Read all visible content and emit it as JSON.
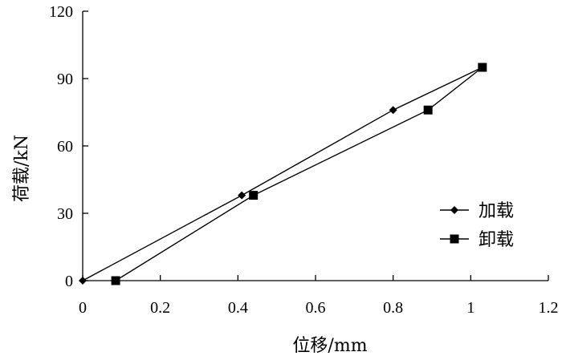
{
  "chart_data": {
    "type": "line",
    "title": "",
    "xlabel": "位移/mm",
    "ylabel": "荷载/kN",
    "xlim": [
      0,
      1.2
    ],
    "ylim": [
      0,
      120
    ],
    "xticks": [
      0,
      0.2,
      0.4,
      0.6,
      0.8,
      1,
      1.2
    ],
    "xtick_labels": [
      "0",
      "0.2",
      "0.4",
      "0.6",
      "0.8",
      "1",
      "1.2"
    ],
    "yticks": [
      0,
      30,
      60,
      90,
      120
    ],
    "ytick_labels": [
      "0",
      "30",
      "60",
      "90",
      "120"
    ],
    "grid": false,
    "legend_position": "right",
    "series": [
      {
        "name": "加载",
        "marker": "diamond",
        "x": [
          0,
          0.41,
          0.8,
          1.03
        ],
        "y": [
          0,
          38,
          76,
          95
        ]
      },
      {
        "name": "卸载",
        "marker": "square",
        "x": [
          1.03,
          0.89,
          0.44,
          0.085
        ],
        "y": [
          95,
          76,
          38,
          0
        ]
      }
    ]
  }
}
